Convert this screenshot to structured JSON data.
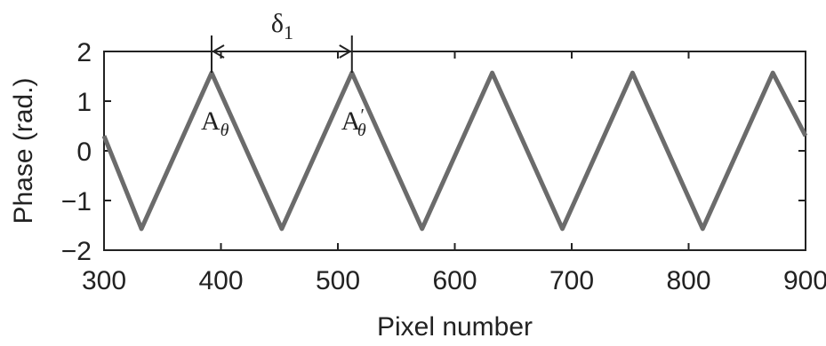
{
  "chart_data": {
    "type": "line",
    "title": "",
    "xlabel": "Pixel number",
    "ylabel": "Phase (rad.)",
    "xlim": [
      300,
      900
    ],
    "ylim": [
      -2,
      2
    ],
    "xticks": [
      300,
      400,
      500,
      600,
      700,
      800,
      900
    ],
    "yticks": [
      -2,
      -1,
      0,
      1,
      2
    ],
    "grid": false,
    "legend": "none",
    "line_color": "#6b6b6b",
    "series": [
      {
        "values_x": [
          300,
          332,
          392,
          452,
          512,
          572,
          632,
          692,
          752,
          812,
          872,
          900
        ],
        "values_y": [
          0.3,
          -1.57,
          1.57,
          -1.57,
          1.57,
          -1.57,
          1.57,
          -1.57,
          1.57,
          -1.57,
          1.57,
          0.3
        ]
      }
    ],
    "annotations": {
      "peak_a": {
        "label_main": "A",
        "label_sub": "θ",
        "x": 392
      },
      "peak_b": {
        "label_main": "A",
        "label_prime": "′",
        "label_sub": "θ",
        "x": 512
      },
      "period": {
        "label_main": "δ",
        "label_sub": "1",
        "x_from": 392,
        "x_to": 512
      }
    }
  }
}
